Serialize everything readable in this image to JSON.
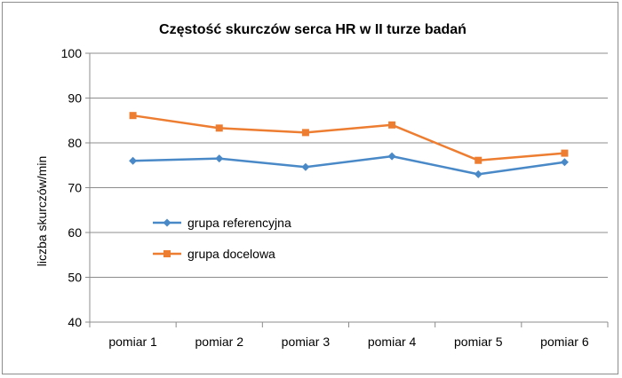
{
  "chart_data": {
    "type": "line",
    "title": "Częstość skurczów serca HR w II turze badań",
    "xlabel": "",
    "ylabel": "liczba skurczów/min",
    "categories": [
      "pomiar 1",
      "pomiar 2",
      "pomiar 3",
      "pomiar 4",
      "pomiar 5",
      "pomiar 6"
    ],
    "ylim": [
      40,
      100
    ],
    "yticks": [
      40,
      50,
      60,
      70,
      80,
      90,
      100
    ],
    "grid": true,
    "legend_position": "inside-left",
    "series": [
      {
        "name": "grupa referencyjna",
        "color": "#4A89C8",
        "marker": "diamond",
        "values": [
          76,
          76.5,
          74.6,
          77,
          73,
          75.7
        ]
      },
      {
        "name": "grupa docelowa",
        "color": "#ED7D31",
        "marker": "square",
        "values": [
          86.1,
          83.3,
          82.3,
          84,
          76.1,
          77.7
        ]
      }
    ]
  }
}
